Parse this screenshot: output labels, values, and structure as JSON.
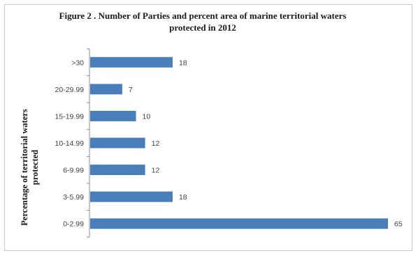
{
  "chart_data": {
    "type": "bar",
    "orientation": "horizontal",
    "title": "Figure 2 . Number of Parties and percent area of marine territorial waters protected in 2012",
    "xlabel": "",
    "ylabel": "Percentage of territorial waters protected",
    "categories": [
      ">30",
      "20-29.99",
      "15-19.99",
      "10-14.99",
      "6-9.99",
      "3-5.99",
      "0-2.99"
    ],
    "values": [
      18,
      7,
      10,
      12,
      12,
      18,
      65
    ],
    "xlim": [
      0,
      65
    ],
    "grid": false,
    "legend": "none",
    "bar_color": "#4a7ebb"
  }
}
